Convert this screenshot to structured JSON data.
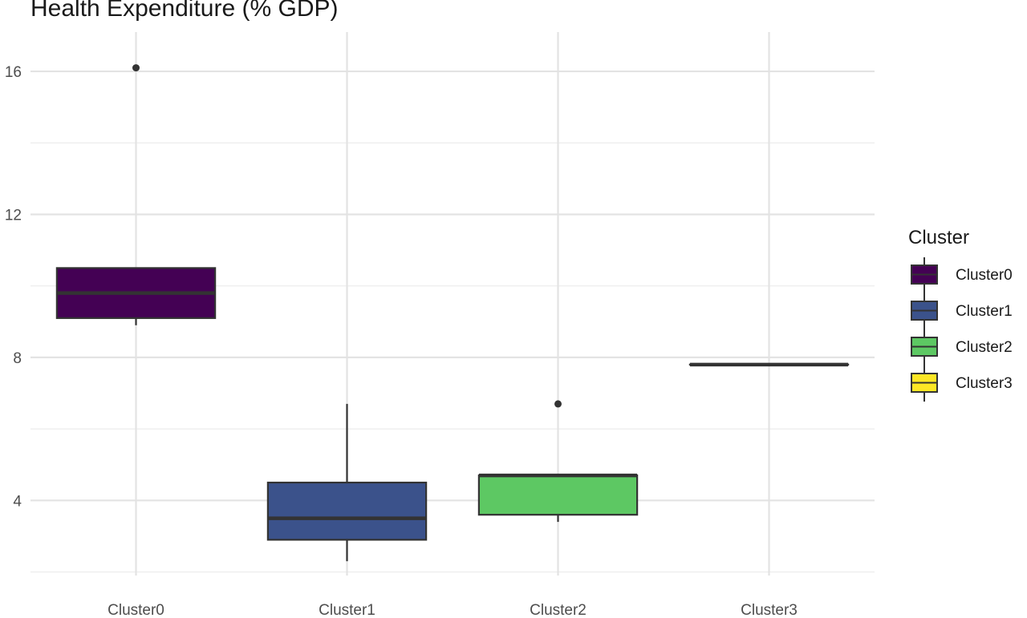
{
  "chart_data": {
    "type": "boxplot",
    "title": "Health Expenditure (% GDP)",
    "xlabel": "",
    "ylabel": "",
    "categories": [
      "Cluster0",
      "Cluster1",
      "Cluster2",
      "Cluster3"
    ],
    "yticks": [
      4,
      8,
      12,
      16
    ],
    "ylim": [
      1.9,
      17.1
    ],
    "grid": true,
    "boxes": [
      {
        "name": "Cluster0",
        "whisker_low": 8.9,
        "q1": 9.1,
        "median": 9.8,
        "q3": 10.5,
        "whisker_high": 10.5,
        "outliers": [
          16.1
        ],
        "color": "#440154"
      },
      {
        "name": "Cluster1",
        "whisker_low": 2.3,
        "q1": 2.9,
        "median": 3.5,
        "q3": 4.5,
        "whisker_high": 6.7,
        "outliers": [],
        "color": "#3B528B"
      },
      {
        "name": "Cluster2",
        "whisker_low": 3.4,
        "q1": 3.6,
        "median": 4.7,
        "q3": 4.7,
        "whisker_high": 4.7,
        "outliers": [
          6.7
        ],
        "color": "#5DC863"
      },
      {
        "name": "Cluster3",
        "whisker_low": 7.8,
        "q1": 7.8,
        "median": 7.8,
        "q3": 7.8,
        "whisker_high": 7.8,
        "outliers": [],
        "color": "#FDE725"
      }
    ],
    "legend": {
      "title": "Cluster",
      "position": "right",
      "entries": [
        "Cluster0",
        "Cluster1",
        "Cluster2",
        "Cluster3"
      ]
    }
  }
}
